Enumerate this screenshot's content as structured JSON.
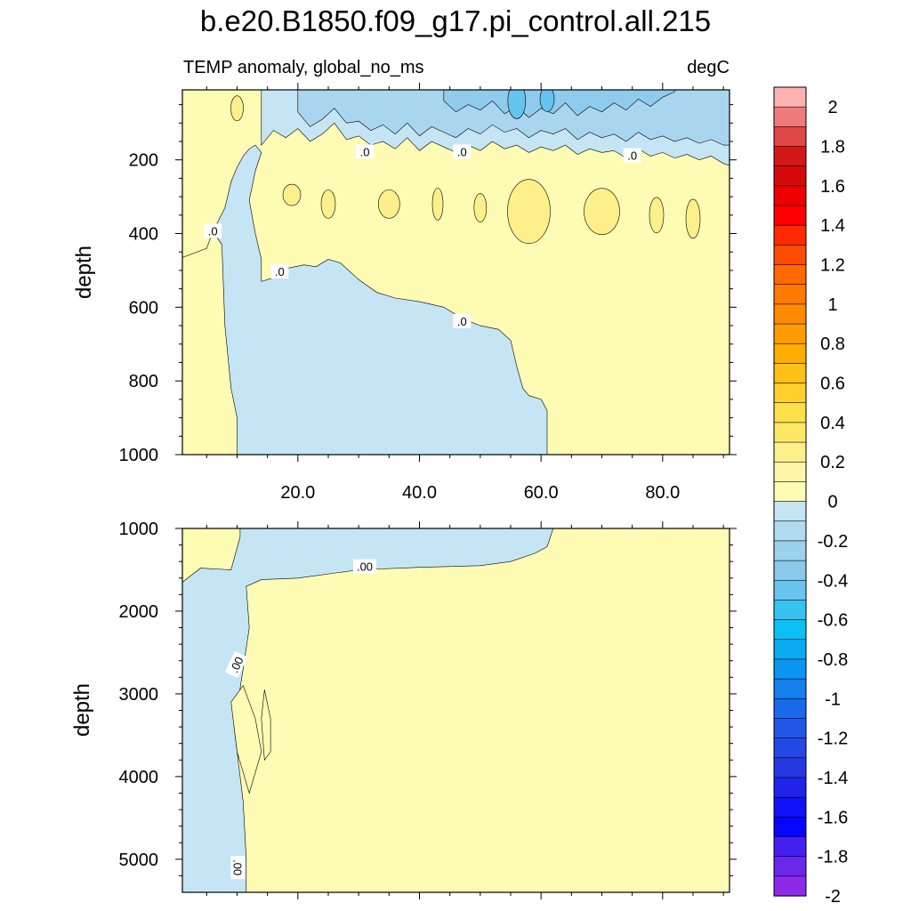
{
  "title": "b.e20.B1850.f09_g17.pi_control.all.215",
  "left_subtitle": "TEMP anomaly, global_no_ms",
  "right_subtitle": "degC",
  "colors": {
    "warm_fill": "#fefbb4",
    "warm_fill_2": "#fdf08a",
    "cool_fill": "#c5e5f4",
    "cool_fill_2": "#a9d6ef",
    "cool_fill_3": "#8ecbec",
    "cool_fill_4": "#64c4ef"
  },
  "chart_data": [
    {
      "type": "contour",
      "panel": "upper",
      "ylabel": "depth",
      "xlim": [
        1,
        91
      ],
      "ylim": [
        1000,
        10
      ],
      "x_ticks": [
        "20.0",
        "40.0",
        "60.0",
        "80.0"
      ],
      "x_tick_values": [
        20,
        40,
        60,
        80
      ],
      "y_ticks": [
        "200",
        "400",
        "600",
        "800",
        "1000"
      ],
      "y_tick_values": [
        200,
        400,
        600,
        800,
        1000
      ],
      "contour_labels": [
        {
          "text": ".0",
          "x": 31,
          "y": 180
        },
        {
          "text": ".0",
          "x": 47,
          "y": 180
        },
        {
          "text": ".0",
          "x": 75,
          "y": 190
        },
        {
          "text": ".0",
          "x": 6,
          "y": 395
        },
        {
          "text": ".0",
          "x": 17,
          "y": 505
        },
        {
          "text": ".0",
          "x": 47,
          "y": 640
        }
      ],
      "zero_contour_boundary": [
        [
          1,
          465
        ],
        [
          5,
          440
        ],
        [
          6,
          395
        ],
        [
          8,
          330
        ],
        [
          9,
          260
        ],
        [
          10,
          220
        ],
        [
          11,
          190
        ],
        [
          12,
          170
        ],
        [
          13,
          160
        ],
        [
          14,
          180
        ],
        [
          13,
          230
        ],
        [
          12,
          310
        ],
        [
          13,
          400
        ],
        [
          14,
          470
        ],
        [
          14,
          530
        ],
        [
          16,
          520
        ],
        [
          18,
          495
        ],
        [
          21,
          485
        ],
        [
          23,
          490
        ],
        [
          25,
          470
        ],
        [
          27,
          480
        ],
        [
          30,
          525
        ],
        [
          33,
          560
        ],
        [
          36,
          575
        ],
        [
          40,
          585
        ],
        [
          44,
          600
        ],
        [
          47,
          630
        ],
        [
          50,
          650
        ],
        [
          53,
          660
        ],
        [
          55,
          690
        ],
        [
          56,
          760
        ],
        [
          57,
          820
        ],
        [
          58,
          840
        ],
        [
          60,
          850
        ],
        [
          61,
          880
        ],
        [
          61,
          1000
        ]
      ]
    },
    {
      "type": "contour",
      "panel": "lower",
      "ylabel": "depth",
      "xlim": [
        1,
        91
      ],
      "ylim": [
        5400,
        1000
      ],
      "y_ticks": [
        "1000",
        "2000",
        "3000",
        "4000",
        "5000"
      ],
      "y_tick_values": [
        1000,
        2000,
        3000,
        4000,
        5000
      ],
      "contour_labels": [
        {
          "text": ".00",
          "x": 31,
          "y": 1470
        },
        {
          "text": ".00",
          "x": 10,
          "y": 2650
        },
        {
          "text": ".00",
          "x": 10,
          "y": 5100
        }
      ]
    }
  ],
  "colorbar": {
    "tick_labels": [
      "2",
      "1.8",
      "1.6",
      "1.4",
      "1.2",
      "1",
      "0.8",
      "0.6",
      "0.4",
      "0.2",
      "0",
      "-0.2",
      "-0.4",
      "-0.6",
      "-0.8",
      "-1",
      "-1.2",
      "-1.4",
      "-1.6",
      "-1.8",
      "-2"
    ],
    "colors": [
      "#ffb2b2",
      "#f07b7b",
      "#e04848",
      "#d41818",
      "#d50909",
      "#ee0000",
      "#ff0000",
      "#ff2a00",
      "#ff4c00",
      "#ff6a00",
      "#ff7b00",
      "#ff8a00",
      "#ff9c00",
      "#ffae00",
      "#ffc018",
      "#ffcf2e",
      "#ffdf4a",
      "#fde866",
      "#fdf08a",
      "#fef6a8",
      "#fefbb4",
      "#c5e5f4",
      "#b1dbf1",
      "#9dd2ee",
      "#8ac8ec",
      "#6ac5ee",
      "#36c3f2",
      "#0cc0f6",
      "#09abf4",
      "#0a96f2",
      "#1380ee",
      "#1a69ea",
      "#2158e8",
      "#2448e6",
      "#2638e2",
      "#1f24ea",
      "#1111f8",
      "#0505ff",
      "#4420f0",
      "#6a28ea",
      "#8d2aea"
    ]
  }
}
